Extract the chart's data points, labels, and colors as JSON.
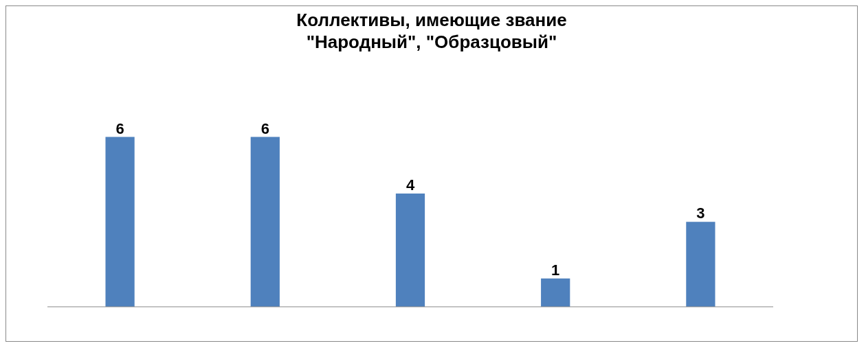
{
  "chart_data": {
    "type": "bar",
    "title": "Коллективы, имеющие звание \"Народный\", \"Образцовый\"",
    "categories": [
      null,
      null,
      null,
      null,
      null
    ],
    "values": [
      6,
      6,
      4,
      1,
      3
    ],
    "color": "#4f81bd",
    "data_labels": true
  }
}
